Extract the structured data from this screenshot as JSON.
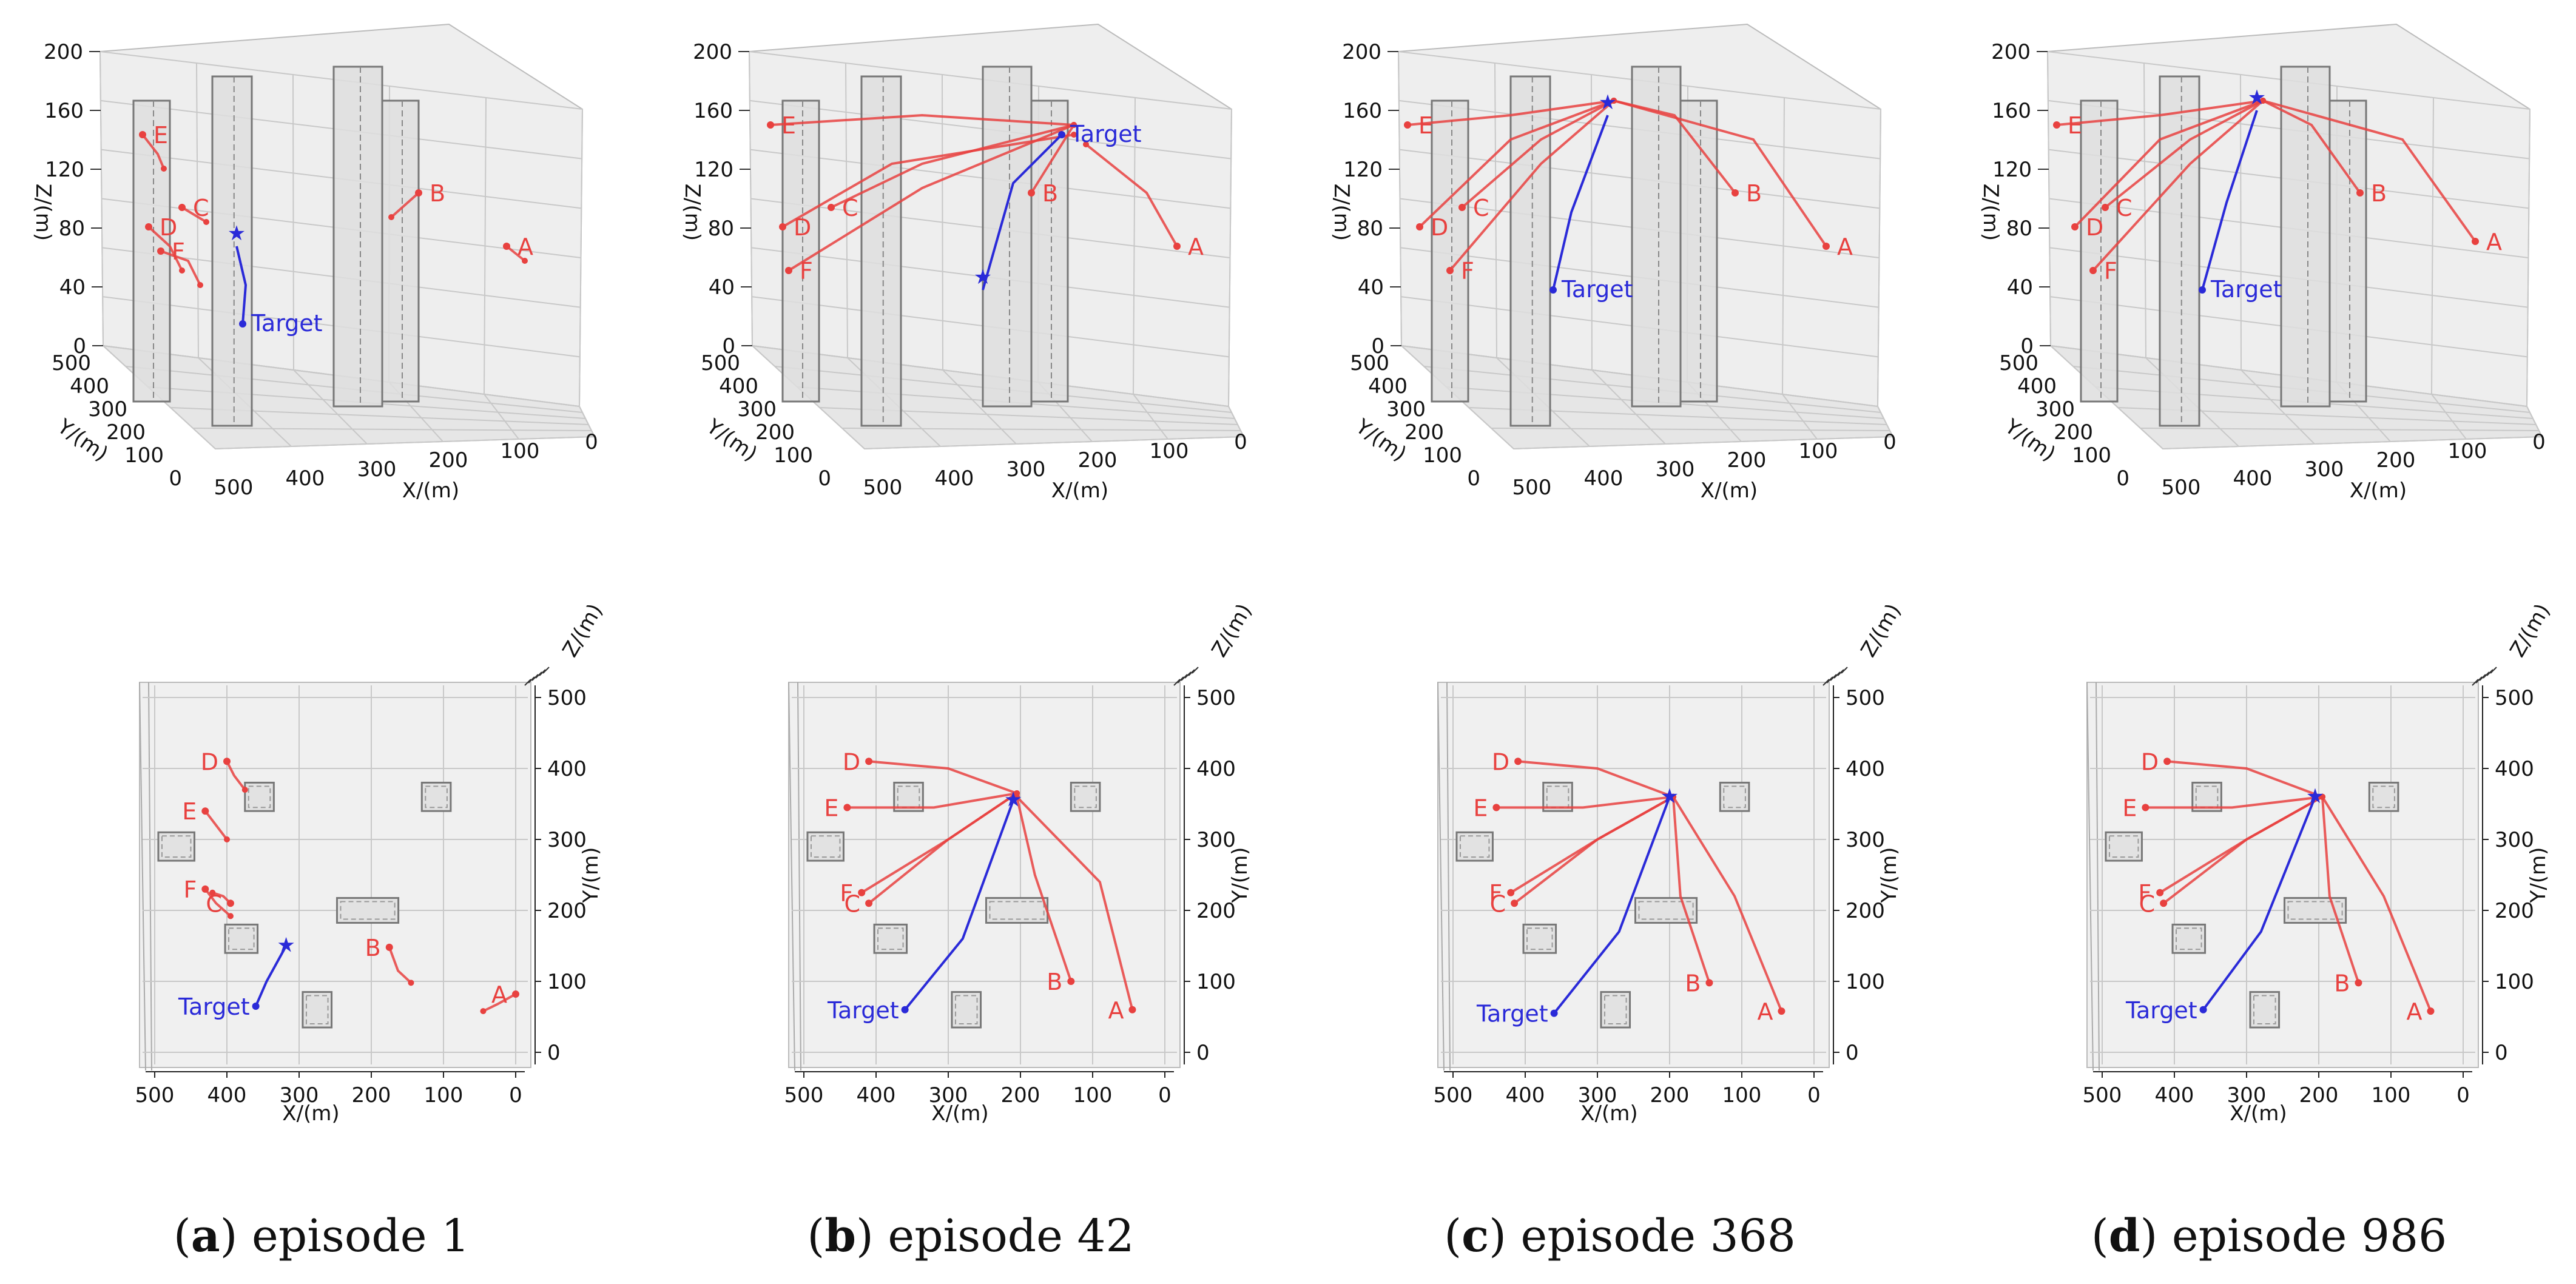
{
  "chart_data": [
    {
      "type": "3d-trajectory",
      "view": "perspective",
      "xlabel": "X/(m)",
      "ylabel": "Y/(m)",
      "zlabel": "Z/(m)",
      "xlim": [
        0,
        500
      ],
      "ylim": [
        0,
        500
      ],
      "zlim": [
        0,
        200
      ],
      "xticks": [
        500,
        400,
        300,
        200,
        100,
        0
      ],
      "yticks": [
        500,
        400,
        300,
        200,
        100,
        0
      ],
      "zticks": [
        0,
        40,
        80,
        120,
        160,
        200
      ],
      "target_label": "Target",
      "agents": [
        "A",
        "B",
        "C",
        "D",
        "E",
        "F"
      ],
      "target_track": [
        [
          0.4,
          0.63
        ],
        [
          0.405,
          0.55
        ],
        [
          0.39,
          0.47
        ]
      ],
      "tracks": {
        "A": [
          [
            0.835,
            0.47
          ],
          [
            0.865,
            0.5
          ]
        ],
        "B": [
          [
            0.69,
            0.36
          ],
          [
            0.645,
            0.41
          ]
        ],
        "C": [
          [
            0.3,
            0.39
          ],
          [
            0.34,
            0.42
          ]
        ],
        "D": [
          [
            0.245,
            0.43
          ],
          [
            0.28,
            0.47
          ],
          [
            0.3,
            0.52
          ]
        ],
        "E": [
          [
            0.235,
            0.24
          ],
          [
            0.26,
            0.28
          ],
          [
            0.27,
            0.31
          ]
        ],
        "F": [
          [
            0.265,
            0.48
          ],
          [
            0.31,
            0.5
          ],
          [
            0.33,
            0.55
          ]
        ]
      }
    },
    {
      "type": "3d-trajectory",
      "view": "top",
      "xlabel": "X/(m)",
      "ylabel": "Y/(m)",
      "zlabel": "Z/(m)",
      "xlim": [
        0,
        500
      ],
      "ylim": [
        0,
        500
      ],
      "xticks": [
        500,
        400,
        300,
        200,
        100,
        0
      ],
      "yticks": [
        0,
        100,
        200,
        300,
        400,
        500
      ],
      "target_label": "Target",
      "agents": [
        "A",
        "B",
        "C",
        "D",
        "E",
        "F"
      ],
      "target_track": [
        [
          360,
          65
        ],
        [
          345,
          100
        ],
        [
          318,
          150
        ]
      ],
      "tracks": {
        "A": [
          [
            0,
            82
          ],
          [
            25,
            68
          ],
          [
            45,
            58
          ]
        ],
        "B": [
          [
            175,
            148
          ],
          [
            163,
            115
          ],
          [
            145,
            98
          ]
        ],
        "C": [
          [
            395,
            210
          ],
          [
            405,
            220
          ],
          [
            420,
            225
          ]
        ],
        "D": [
          [
            400,
            410
          ],
          [
            390,
            390
          ],
          [
            375,
            370
          ]
        ],
        "E": [
          [
            430,
            340
          ],
          [
            415,
            320
          ],
          [
            400,
            300
          ]
        ],
        "F": [
          [
            430,
            230
          ],
          [
            415,
            210
          ],
          [
            395,
            192
          ]
        ]
      }
    },
    {
      "type": "3d-trajectory",
      "view": "perspective",
      "xlabel": "X/(m)",
      "ylabel": "Y/(m)",
      "zlabel": "Z/(m)",
      "xlim": [
        0,
        500
      ],
      "ylim": [
        0,
        500
      ],
      "zlim": [
        0,
        200
      ],
      "xticks": [
        500,
        400,
        300,
        200,
        100,
        0
      ],
      "yticks": [
        500,
        400,
        300,
        200,
        100,
        0
      ],
      "zticks": [
        0,
        40,
        80,
        120,
        160,
        200
      ],
      "target_label": "Target",
      "agents": [
        "A",
        "B",
        "C",
        "D",
        "E",
        "F"
      ],
      "target_track": [
        [
          0.68,
          0.24
        ],
        [
          0.6,
          0.34
        ],
        [
          0.55,
          0.56
        ]
      ],
      "tracks": {
        "A": [
          [
            0.87,
            0.47
          ],
          [
            0.82,
            0.36
          ],
          [
            0.72,
            0.26
          ]
        ],
        "B": [
          [
            0.63,
            0.36
          ],
          [
            0.66,
            0.3
          ],
          [
            0.7,
            0.22
          ]
        ],
        "C": [
          [
            0.3,
            0.39
          ],
          [
            0.45,
            0.3
          ],
          [
            0.7,
            0.22
          ]
        ],
        "D": [
          [
            0.22,
            0.43
          ],
          [
            0.4,
            0.3
          ],
          [
            0.7,
            0.24
          ]
        ],
        "E": [
          [
            0.2,
            0.22
          ],
          [
            0.45,
            0.2
          ],
          [
            0.7,
            0.22
          ]
        ],
        "F": [
          [
            0.23,
            0.52
          ],
          [
            0.45,
            0.35
          ],
          [
            0.7,
            0.22
          ]
        ]
      }
    },
    {
      "type": "3d-trajectory",
      "view": "top",
      "xlabel": "X/(m)",
      "ylabel": "Y/(m)",
      "zlabel": "Z/(m)",
      "xlim": [
        0,
        500
      ],
      "ylim": [
        0,
        500
      ],
      "xticks": [
        500,
        400,
        300,
        200,
        100,
        0
      ],
      "yticks": [
        0,
        100,
        200,
        300,
        400,
        500
      ],
      "target_label": "Target",
      "agents": [
        "A",
        "B",
        "C",
        "D",
        "E",
        "F"
      ],
      "target_track": [
        [
          360,
          60
        ],
        [
          280,
          160
        ],
        [
          210,
          355
        ]
      ],
      "tracks": {
        "A": [
          [
            45,
            60
          ],
          [
            90,
            240
          ],
          [
            205,
            360
          ]
        ],
        "B": [
          [
            130,
            100
          ],
          [
            180,
            250
          ],
          [
            205,
            360
          ]
        ],
        "C": [
          [
            410,
            210
          ],
          [
            300,
            300
          ],
          [
            205,
            365
          ]
        ],
        "D": [
          [
            410,
            410
          ],
          [
            300,
            400
          ],
          [
            205,
            365
          ]
        ],
        "E": [
          [
            440,
            345
          ],
          [
            320,
            345
          ],
          [
            205,
            365
          ]
        ],
        "F": [
          [
            420,
            225
          ],
          [
            300,
            300
          ],
          [
            205,
            365
          ]
        ]
      }
    },
    {
      "type": "3d-trajectory",
      "view": "perspective",
      "xlabel": "X/(m)",
      "ylabel": "Y/(m)",
      "zlabel": "Z/(m)",
      "xlim": [
        0,
        500
      ],
      "ylim": [
        0,
        500
      ],
      "zlim": [
        0,
        200
      ],
      "xticks": [
        500,
        400,
        300,
        200,
        100,
        0
      ],
      "yticks": [
        500,
        400,
        300,
        200,
        100,
        0
      ],
      "zticks": [
        0,
        40,
        80,
        120,
        160,
        200
      ],
      "target_label": "Target",
      "agents": [
        "A",
        "B",
        "C",
        "D",
        "E",
        "F"
      ],
      "target_track": [
        [
          0.42,
          0.56
        ],
        [
          0.45,
          0.4
        ],
        [
          0.51,
          0.2
        ]
      ],
      "tracks": {
        "A": [
          [
            0.87,
            0.47
          ],
          [
            0.75,
            0.25
          ],
          [
            0.52,
            0.17
          ]
        ],
        "B": [
          [
            0.72,
            0.36
          ],
          [
            0.62,
            0.2
          ],
          [
            0.52,
            0.17
          ]
        ],
        "C": [
          [
            0.27,
            0.39
          ],
          [
            0.4,
            0.25
          ],
          [
            0.52,
            0.17
          ]
        ],
        "D": [
          [
            0.2,
            0.43
          ],
          [
            0.35,
            0.25
          ],
          [
            0.52,
            0.17
          ]
        ],
        "E": [
          [
            0.18,
            0.22
          ],
          [
            0.35,
            0.2
          ],
          [
            0.52,
            0.17
          ]
        ],
        "F": [
          [
            0.25,
            0.52
          ],
          [
            0.4,
            0.3
          ],
          [
            0.52,
            0.17
          ]
        ]
      }
    },
    {
      "type": "3d-trajectory",
      "view": "top",
      "xlabel": "X/(m)",
      "ylabel": "Y/(m)",
      "zlabel": "Z/(m)",
      "xlim": [
        0,
        500
      ],
      "ylim": [
        0,
        500
      ],
      "xticks": [
        500,
        400,
        300,
        200,
        100,
        0
      ],
      "yticks": [
        0,
        100,
        200,
        300,
        400,
        500
      ],
      "target_label": "Target",
      "agents": [
        "A",
        "B",
        "C",
        "D",
        "E",
        "F"
      ],
      "target_track": [
        [
          360,
          55
        ],
        [
          270,
          170
        ],
        [
          200,
          360
        ]
      ],
      "tracks": {
        "A": [
          [
            45,
            58
          ],
          [
            110,
            220
          ],
          [
            195,
            360
          ]
        ],
        "B": [
          [
            145,
            98
          ],
          [
            185,
            220
          ],
          [
            195,
            360
          ]
        ],
        "C": [
          [
            415,
            210
          ],
          [
            300,
            300
          ],
          [
            195,
            360
          ]
        ],
        "D": [
          [
            410,
            410
          ],
          [
            300,
            400
          ],
          [
            195,
            360
          ]
        ],
        "E": [
          [
            440,
            345
          ],
          [
            320,
            345
          ],
          [
            195,
            360
          ]
        ],
        "F": [
          [
            420,
            225
          ],
          [
            300,
            300
          ],
          [
            195,
            360
          ]
        ]
      }
    },
    {
      "type": "3d-trajectory",
      "view": "perspective",
      "xlabel": "X/(m)",
      "ylabel": "Y/(m)",
      "zlabel": "Z/(m)",
      "xlim": [
        0,
        500
      ],
      "ylim": [
        0,
        500
      ],
      "zlim": [
        0,
        200
      ],
      "xticks": [
        500,
        400,
        300,
        200,
        100,
        0
      ],
      "yticks": [
        500,
        400,
        300,
        200,
        100,
        0
      ],
      "zticks": [
        0,
        40,
        80,
        120,
        160,
        200
      ],
      "target_label": "Target",
      "agents": [
        "A",
        "B",
        "C",
        "D",
        "E",
        "F"
      ],
      "target_track": [
        [
          0.42,
          0.56
        ],
        [
          0.46,
          0.38
        ],
        [
          0.51,
          0.19
        ]
      ],
      "tracks": {
        "A": [
          [
            0.87,
            0.46
          ],
          [
            0.75,
            0.25
          ],
          [
            0.52,
            0.17
          ]
        ],
        "B": [
          [
            0.68,
            0.36
          ],
          [
            0.6,
            0.22
          ],
          [
            0.52,
            0.17
          ]
        ],
        "C": [
          [
            0.26,
            0.39
          ],
          [
            0.4,
            0.25
          ],
          [
            0.52,
            0.17
          ]
        ],
        "D": [
          [
            0.21,
            0.43
          ],
          [
            0.35,
            0.25
          ],
          [
            0.52,
            0.17
          ]
        ],
        "E": [
          [
            0.18,
            0.22
          ],
          [
            0.35,
            0.2
          ],
          [
            0.52,
            0.17
          ]
        ],
        "F": [
          [
            0.24,
            0.52
          ],
          [
            0.4,
            0.3
          ],
          [
            0.52,
            0.17
          ]
        ]
      }
    },
    {
      "type": "3d-trajectory",
      "view": "top",
      "xlabel": "X/(m)",
      "ylabel": "Y/(m)",
      "zlabel": "Z/(m)",
      "xlim": [
        0,
        500
      ],
      "ylim": [
        0,
        500
      ],
      "xticks": [
        500,
        400,
        300,
        200,
        100,
        0
      ],
      "yticks": [
        0,
        100,
        200,
        300,
        400,
        500
      ],
      "target_label": "Target",
      "agents": [
        "A",
        "B",
        "C",
        "D",
        "E",
        "F"
      ],
      "target_track": [
        [
          360,
          60
        ],
        [
          280,
          170
        ],
        [
          205,
          360
        ]
      ],
      "tracks": {
        "A": [
          [
            45,
            58
          ],
          [
            110,
            220
          ],
          [
            195,
            360
          ]
        ],
        "B": [
          [
            145,
            98
          ],
          [
            185,
            220
          ],
          [
            195,
            360
          ]
        ],
        "C": [
          [
            415,
            210
          ],
          [
            300,
            300
          ],
          [
            195,
            360
          ]
        ],
        "D": [
          [
            410,
            410
          ],
          [
            300,
            400
          ],
          [
            195,
            360
          ]
        ],
        "E": [
          [
            440,
            345
          ],
          [
            320,
            345
          ],
          [
            195,
            360
          ]
        ],
        "F": [
          [
            420,
            225
          ],
          [
            300,
            300
          ],
          [
            195,
            360
          ]
        ]
      }
    }
  ],
  "captions": [
    {
      "letter": "a",
      "text": " episode 1"
    },
    {
      "letter": "b",
      "text": " episode 42"
    },
    {
      "letter": "c",
      "text": " episode 368"
    },
    {
      "letter": "d",
      "text": " episode 986"
    }
  ]
}
